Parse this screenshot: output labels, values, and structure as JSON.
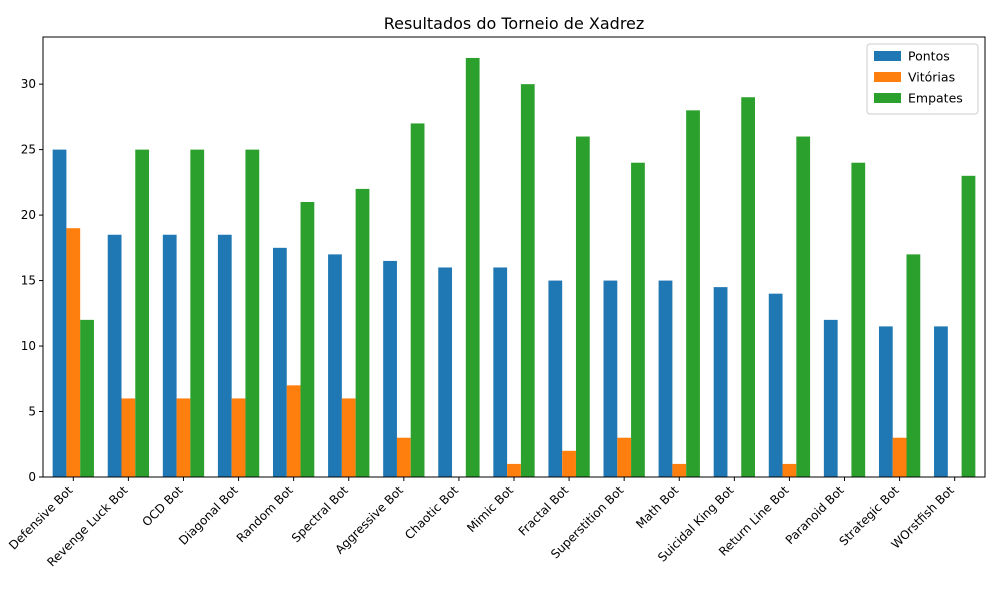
{
  "chart_data": {
    "type": "bar",
    "title": "Resultados do Torneio de Xadrez",
    "xlabel": "",
    "ylabel": "",
    "categories": [
      "Defensive Bot",
      "Revenge Luck Bot",
      "OCD Bot",
      "Diagonal Bot",
      "Random Bot",
      "Spectral Bot",
      "Aggressive Bot",
      "Chaotic Bot",
      "Mimic Bot",
      "Fractal Bot",
      "Superstition Bot",
      "Math Bot",
      "Suicidal King Bot",
      "Return Line Bot",
      "Paranoid Bot",
      "Strategic Bot",
      "WOrstfish Bot"
    ],
    "series": [
      {
        "name": "Pontos",
        "color": "#1f77b4",
        "values": [
          25,
          18.5,
          18.5,
          18.5,
          17.5,
          17,
          16.5,
          16,
          16,
          15,
          15,
          15,
          14.5,
          14,
          12,
          11.5,
          11.5
        ]
      },
      {
        "name": "Vitórias",
        "color": "#ff7f0e",
        "values": [
          19,
          6,
          6,
          6,
          7,
          6,
          3,
          0,
          1,
          2,
          3,
          1,
          0,
          1,
          0,
          3,
          0
        ]
      },
      {
        "name": "Empates",
        "color": "#2ca02c",
        "values": [
          12,
          25,
          25,
          25,
          21,
          22,
          27,
          32,
          30,
          26,
          24,
          28,
          29,
          26,
          24,
          17,
          23
        ]
      }
    ],
    "ylim": [
      0,
      33.6
    ],
    "yticks": [
      0,
      5,
      10,
      15,
      20,
      25,
      30
    ],
    "grid": false,
    "legend_position": "top-right"
  }
}
